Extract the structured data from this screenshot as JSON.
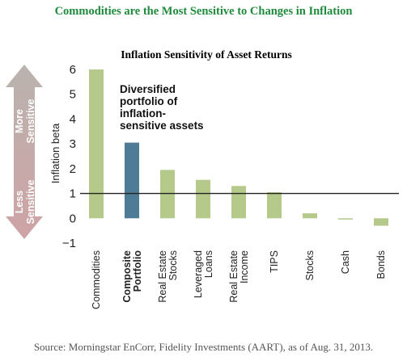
{
  "main_title": "Commodities are the Most Sensitive to Changes in Inflation",
  "source": "Source: Morningstar EnCorr, Fidelity Investments (AART), as of Aug. 31, 2013.",
  "colors": {
    "title": "#1f8a3c",
    "bar_default": "#b5c98a",
    "bar_highlight": "#4e7b96",
    "arrow_top": "#b9b3ae",
    "arrow_bottom": "#cfa3a5",
    "reference_line": "#222222"
  },
  "sensitivity_arrow": {
    "top_label": [
      "More",
      "Sensitive"
    ],
    "bottom_label": [
      "Less",
      "Sensitive"
    ]
  },
  "chart_data": {
    "type": "bar",
    "title": "Inflation Sensitivity of Asset Returns",
    "ylabel": "Inflation beta",
    "xlabel": "",
    "ylim": [
      -1,
      6
    ],
    "yticks": [
      -1,
      0,
      1,
      2,
      3,
      4,
      5,
      6
    ],
    "grid": false,
    "reference_line": 1,
    "categories": [
      [
        "Commodities"
      ],
      [
        "Composite",
        "Portfolio"
      ],
      [
        "Real Estate",
        "Stocks"
      ],
      [
        "Leveraged",
        "Loans"
      ],
      [
        "Real Estate",
        "Income"
      ],
      [
        "TIPS"
      ],
      [
        "Stocks"
      ],
      [
        "Cash"
      ],
      [
        "Bonds"
      ]
    ],
    "values": [
      6.0,
      3.05,
      1.95,
      1.55,
      1.3,
      1.05,
      0.2,
      -0.05,
      -0.3
    ],
    "highlight_index": 1,
    "annotation": [
      "Diversified",
      "portfolio of",
      "inflation-",
      "sensitive assets"
    ]
  }
}
